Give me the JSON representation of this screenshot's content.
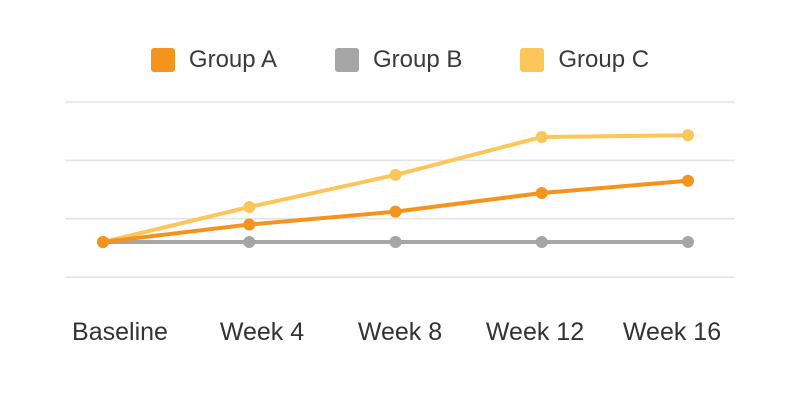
{
  "chart_data": {
    "type": "line",
    "title": "",
    "xlabel": "",
    "ylabel": "",
    "categories": [
      "Baseline",
      "Week 4",
      "Week 8",
      "Week 12",
      "Week 16"
    ],
    "series": [
      {
        "name": "Group A",
        "color": "#F5941D",
        "values": [
          6,
          9,
          11.2,
          14.4,
          16.5
        ]
      },
      {
        "name": "Group B",
        "color": "#A5A5A5",
        "values": [
          6,
          6,
          6,
          6,
          6
        ]
      },
      {
        "name": "Group C",
        "color": "#FBC65A",
        "values": [
          6,
          12,
          17.5,
          24,
          24.3
        ]
      }
    ],
    "ylim": [
      0,
      30
    ],
    "gridline_values": [
      0,
      10,
      20,
      30
    ],
    "grid": "horizontal",
    "legend_position": "top",
    "y_axis_labels_visible": false
  },
  "colors": {
    "background": "#FFFFFF",
    "gridline": "#E3E3E3",
    "label_text": "#333333"
  }
}
